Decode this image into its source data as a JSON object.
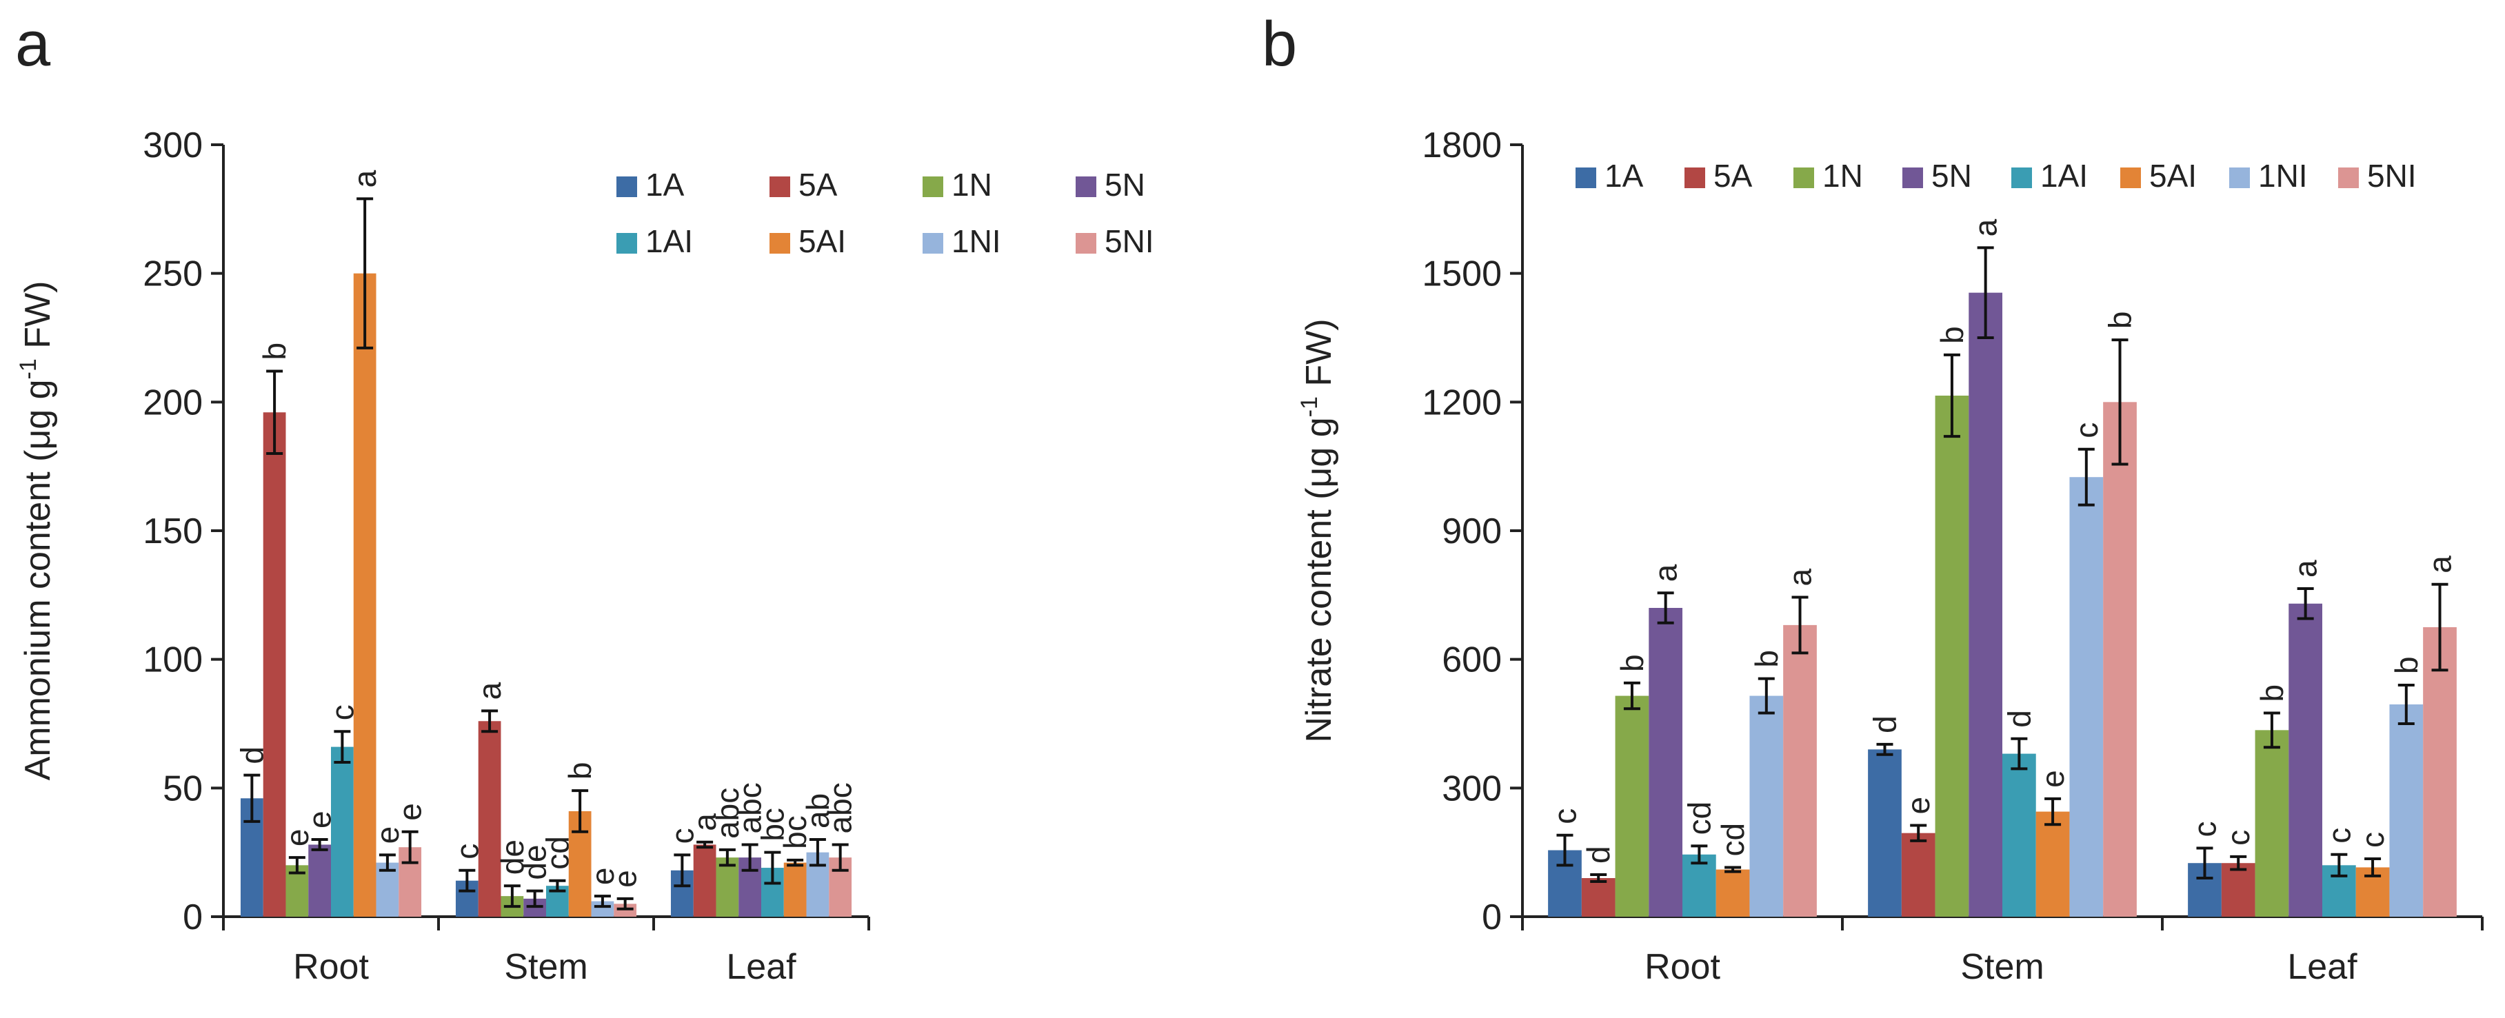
{
  "figure": {
    "series_names": [
      "1A",
      "5A",
      "1N",
      "5N",
      "1AI",
      "5AI",
      "1NI",
      "5NI"
    ],
    "series_colors": [
      "#3d6ca5",
      "#b24744",
      "#86a94a",
      "#715796",
      "#3a9db3",
      "#e38436",
      "#96b4dc",
      "#dc9593"
    ]
  },
  "chart_data": [
    {
      "type": "bar",
      "panel": "a",
      "title": "",
      "xlabel": "",
      "ylabel": "Ammonium content (μg g⁻¹ FW)",
      "ylabel_parts": {
        "before": "Ammonium content (μg g",
        "sup": "-1",
        "after": " FW)"
      },
      "ylim": [
        0,
        300
      ],
      "yticks": [
        0,
        50,
        100,
        150,
        200,
        250,
        300
      ],
      "categories": [
        "Root",
        "Stem",
        "Leaf"
      ],
      "legend": "top-right",
      "series": [
        {
          "name": "1A",
          "values": [
            46,
            14,
            18
          ],
          "errors": [
            9,
            4,
            6
          ],
          "letters": [
            "d",
            "c",
            "c"
          ]
        },
        {
          "name": "5A",
          "values": [
            196,
            76,
            28
          ],
          "errors": [
            16,
            4,
            1
          ],
          "letters": [
            "b",
            "a",
            "a"
          ]
        },
        {
          "name": "1N",
          "values": [
            20,
            8,
            23
          ],
          "errors": [
            3,
            4,
            3
          ],
          "letters": [
            "e",
            "de",
            "abc"
          ]
        },
        {
          "name": "5N",
          "values": [
            28,
            7,
            23
          ],
          "errors": [
            2,
            3,
            5
          ],
          "letters": [
            "e",
            "de",
            "abc"
          ]
        },
        {
          "name": "1AI",
          "values": [
            66,
            12,
            19
          ],
          "errors": [
            6,
            2,
            6
          ],
          "letters": [
            "c",
            "cd",
            "bc"
          ]
        },
        {
          "name": "5AI",
          "values": [
            250,
            41,
            21
          ],
          "errors": [
            29,
            8,
            1
          ],
          "letters": [
            "a",
            "b",
            "bc"
          ]
        },
        {
          "name": "1NI",
          "values": [
            21,
            6,
            25
          ],
          "errors": [
            3,
            2,
            5
          ],
          "letters": [
            "e",
            "e",
            "ab"
          ]
        },
        {
          "name": "5NI",
          "values": [
            27,
            5,
            23
          ],
          "errors": [
            6,
            2,
            5
          ],
          "letters": [
            "e",
            "e",
            "abc"
          ]
        }
      ]
    },
    {
      "type": "bar",
      "panel": "b",
      "title": "",
      "xlabel": "",
      "ylabel": "Nitrate content (μg g⁻¹ FW)",
      "ylabel_parts": {
        "before": "Nitrate content (μg g",
        "sup": "-1",
        "after": " FW)"
      },
      "ylim": [
        0,
        1800
      ],
      "yticks": [
        0,
        300,
        600,
        900,
        1200,
        1500,
        1800
      ],
      "categories": [
        "Root",
        "Stem",
        "Leaf"
      ],
      "legend": "top",
      "series": [
        {
          "name": "1A",
          "values": [
            155,
            390,
            125
          ],
          "errors": [
            35,
            12,
            35
          ],
          "letters": [
            "c",
            "d",
            "c"
          ]
        },
        {
          "name": "5A",
          "values": [
            90,
            195,
            125
          ],
          "errors": [
            8,
            18,
            15
          ],
          "letters": [
            "d",
            "e",
            "c"
          ]
        },
        {
          "name": "1N",
          "values": [
            515,
            1215,
            435
          ],
          "errors": [
            30,
            95,
            40
          ],
          "letters": [
            "b",
            "b",
            "b"
          ]
        },
        {
          "name": "5N",
          "values": [
            720,
            1455,
            730
          ],
          "errors": [
            35,
            105,
            35
          ],
          "letters": [
            "a",
            "a",
            "a"
          ]
        },
        {
          "name": "1AI",
          "values": [
            145,
            380,
            120
          ],
          "errors": [
            20,
            35,
            25
          ],
          "letters": [
            "cd",
            "d",
            "c"
          ]
        },
        {
          "name": "5AI",
          "values": [
            110,
            245,
            115
          ],
          "errors": [
            5,
            30,
            20
          ],
          "letters": [
            "cd",
            "e",
            "c"
          ]
        },
        {
          "name": "1NI",
          "values": [
            515,
            1025,
            495
          ],
          "errors": [
            40,
            65,
            45
          ],
          "letters": [
            "b",
            "c",
            "b"
          ]
        },
        {
          "name": "5NI",
          "values": [
            680,
            1200,
            675
          ],
          "errors": [
            65,
            145,
            100
          ],
          "letters": [
            "a",
            "b",
            "a"
          ]
        }
      ]
    }
  ]
}
